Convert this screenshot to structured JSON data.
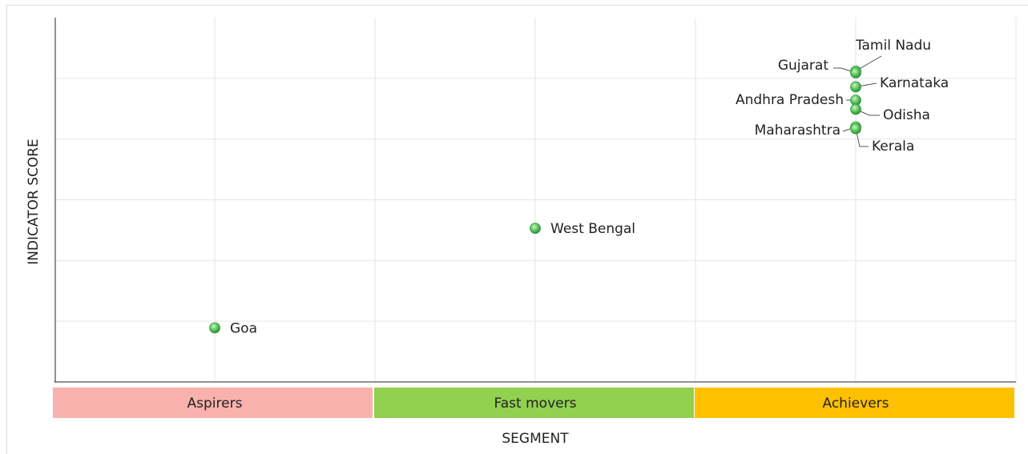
{
  "chart_data": {
    "type": "scatter",
    "x_label": "SEGMENT",
    "y_label": "INDICATOR SCORE",
    "categories": [
      "Aspirers",
      "Fast movers",
      "Achievers"
    ],
    "category_colors": [
      "#f9b1ad",
      "#92d050",
      "#ffc000"
    ],
    "color": "#5cc85c",
    "ylim": [
      0,
      6
    ],
    "yticks": [
      1,
      2,
      3,
      4,
      5
    ],
    "grid": true,
    "points": [
      {
        "label": "Goa",
        "x": "Aspirers",
        "y": 0.89
      },
      {
        "label": "West Bengal",
        "x": "Fast movers",
        "y": 2.53
      },
      {
        "label": "Tamil Nadu",
        "x": "Achievers",
        "y": 5.12
      },
      {
        "label": "Gujarat",
        "x": "Achievers",
        "y": 5.09
      },
      {
        "label": "Karnataka",
        "x": "Achievers",
        "y": 4.86
      },
      {
        "label": "Andhra Pradesh",
        "x": "Achievers",
        "y": 4.64
      },
      {
        "label": "Odisha",
        "x": "Achievers",
        "y": 4.49
      },
      {
        "label": "Maharashtra",
        "x": "Achievers",
        "y": 4.2
      },
      {
        "label": "Kerala",
        "x": "Achievers",
        "y": 4.17
      }
    ]
  }
}
